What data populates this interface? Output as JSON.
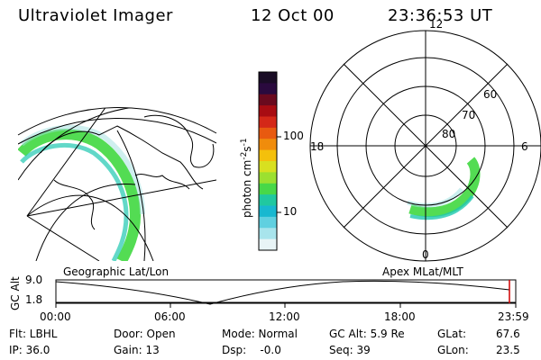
{
  "header": {
    "instrument": "Ultraviolet Imager",
    "date": "12 Oct 00",
    "time": "23:36:53 UT"
  },
  "colorbar": {
    "unit_label": "photon cm",
    "unit_exp1": "-2",
    "unit_s": "s",
    "unit_exp2": "-1",
    "ticks": [
      "100",
      "10"
    ],
    "colors": [
      "#1a0d26",
      "#2a0a3e",
      "#6a0a1e",
      "#a80c12",
      "#d42818",
      "#e85a10",
      "#f08c0c",
      "#f4c00c",
      "#d8e020",
      "#9ce030",
      "#48d848",
      "#20c8a0",
      "#18b8d0",
      "#60d0e0",
      "#a8e4ec",
      "#e8f4f6"
    ]
  },
  "left_panel": {
    "label": "Geographic Lat/Lon"
  },
  "right_panel": {
    "label": "Apex MLat/MLT",
    "mlt_labels": [
      "12",
      "18",
      "6",
      "0"
    ],
    "lat_labels": [
      "60",
      "70",
      "80"
    ]
  },
  "altitude_plot": {
    "ylabel": "GC Alt",
    "yticks": [
      "9.0",
      "1.8"
    ],
    "xticks": [
      "00:00",
      "06:00",
      "12:00",
      "18:00",
      "23:59"
    ]
  },
  "footer": {
    "row1": {
      "flt": "Flt: LBHL",
      "door": "Door: Open",
      "mode": "Mode: Normal",
      "gcalt": "GC Alt: 5.9 Re",
      "glat_label": "GLat:",
      "glat_value": "67.6"
    },
    "row2": {
      "ip": "IP: 36.0",
      "gain": "Gain: 13",
      "dsp": "Dsp:    -0.0",
      "seq": "Seq: 39",
      "glon_label": "GLon:",
      "glon_value": "23.5"
    }
  }
}
